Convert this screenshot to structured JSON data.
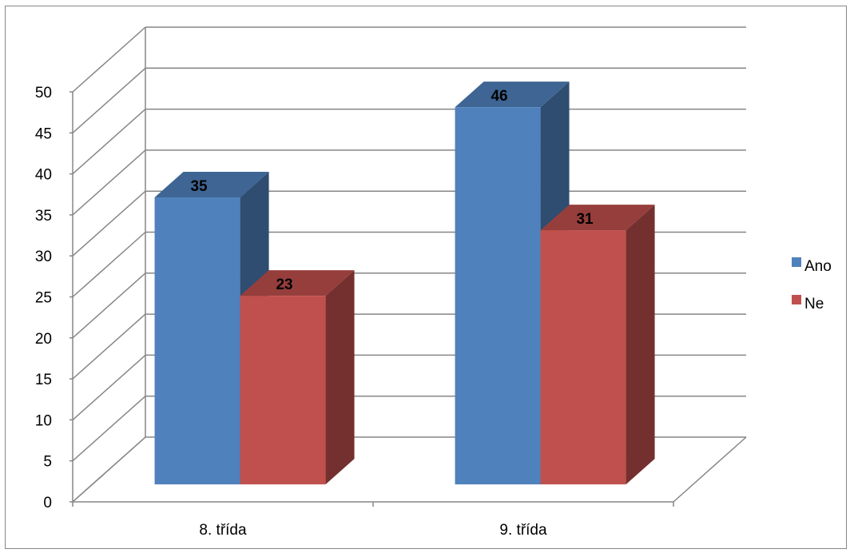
{
  "chart_data": {
    "type": "bar",
    "categories": [
      "8. třída",
      "9. třída"
    ],
    "series": [
      {
        "name": "Ano",
        "values": [
          35,
          46
        ],
        "color": "#4F81BD"
      },
      {
        "name": "Ne",
        "values": [
          23,
          31
        ],
        "color": "#C0504D"
      }
    ],
    "ylim": [
      0,
      50
    ],
    "ytick_step": 5,
    "title": "",
    "xlabel": "",
    "ylabel": "",
    "grid": true,
    "legend": "right",
    "style": "3d-column"
  }
}
